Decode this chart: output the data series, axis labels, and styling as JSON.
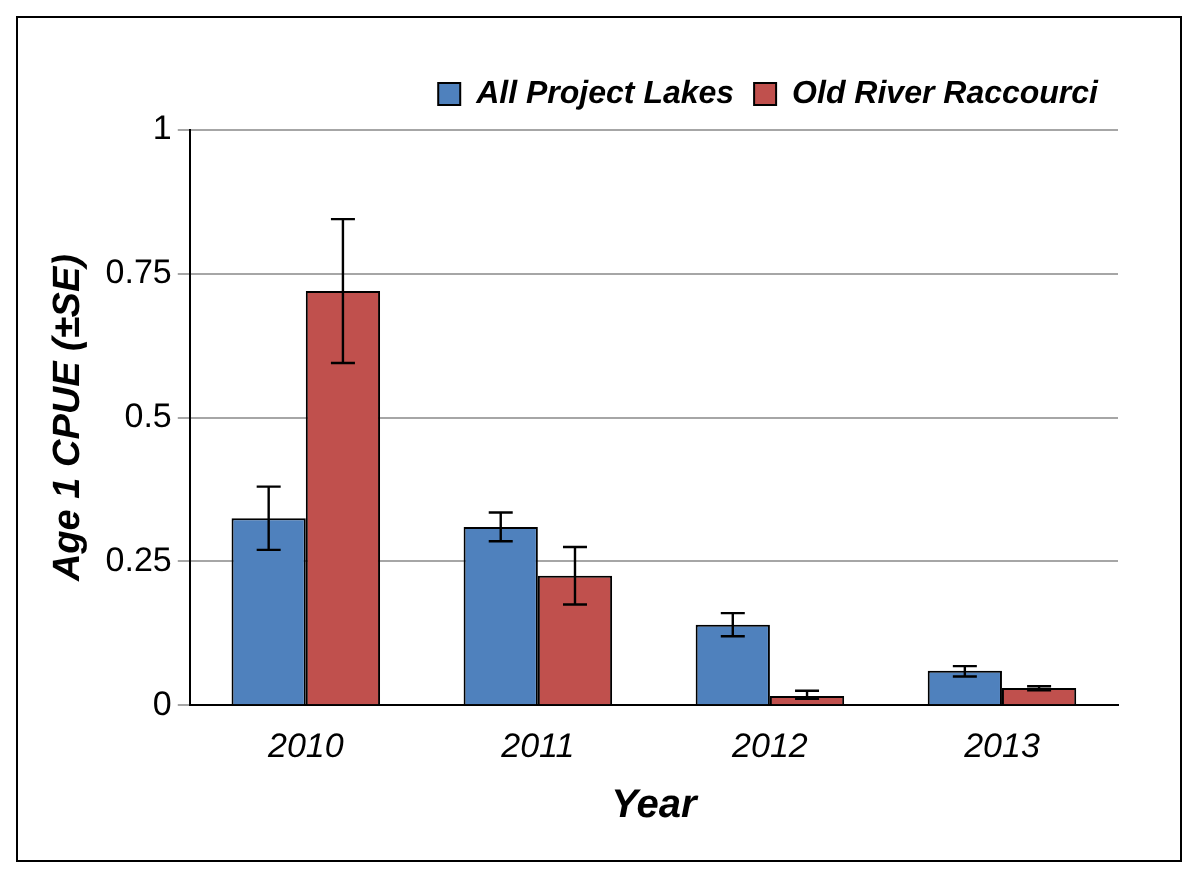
{
  "chart_data": {
    "type": "bar",
    "xlabel": "Year",
    "ylabel": "Age 1 CPUE (±SE)",
    "categories": [
      "2010",
      "2011",
      "2012",
      "2013"
    ],
    "series": [
      {
        "name": "All Project Lakes",
        "color": "#4f81bd",
        "values": [
          0.325,
          0.31,
          0.14,
          0.06
        ],
        "errors": [
          [
            0.27,
            0.38
          ],
          [
            0.285,
            0.335
          ],
          [
            0.12,
            0.16
          ],
          [
            0.05,
            0.068
          ]
        ]
      },
      {
        "name": "Old River Raccourci",
        "color": "#c0504d",
        "values": [
          0.72,
          0.225,
          0.016,
          0.03
        ],
        "errors": [
          [
            0.595,
            0.845
          ],
          [
            0.175,
            0.275
          ],
          [
            0.011,
            0.025
          ],
          [
            0.026,
            0.033
          ]
        ]
      }
    ],
    "ylim": [
      0,
      1
    ],
    "yticks": [
      0,
      {
        "value": 0.25,
        "label": "0.25"
      },
      {
        "value": 0.5,
        "label": "0.5"
      },
      {
        "value": 0.75,
        "label": "0.75"
      },
      1
    ],
    "grid": "y",
    "legend": "top right"
  }
}
